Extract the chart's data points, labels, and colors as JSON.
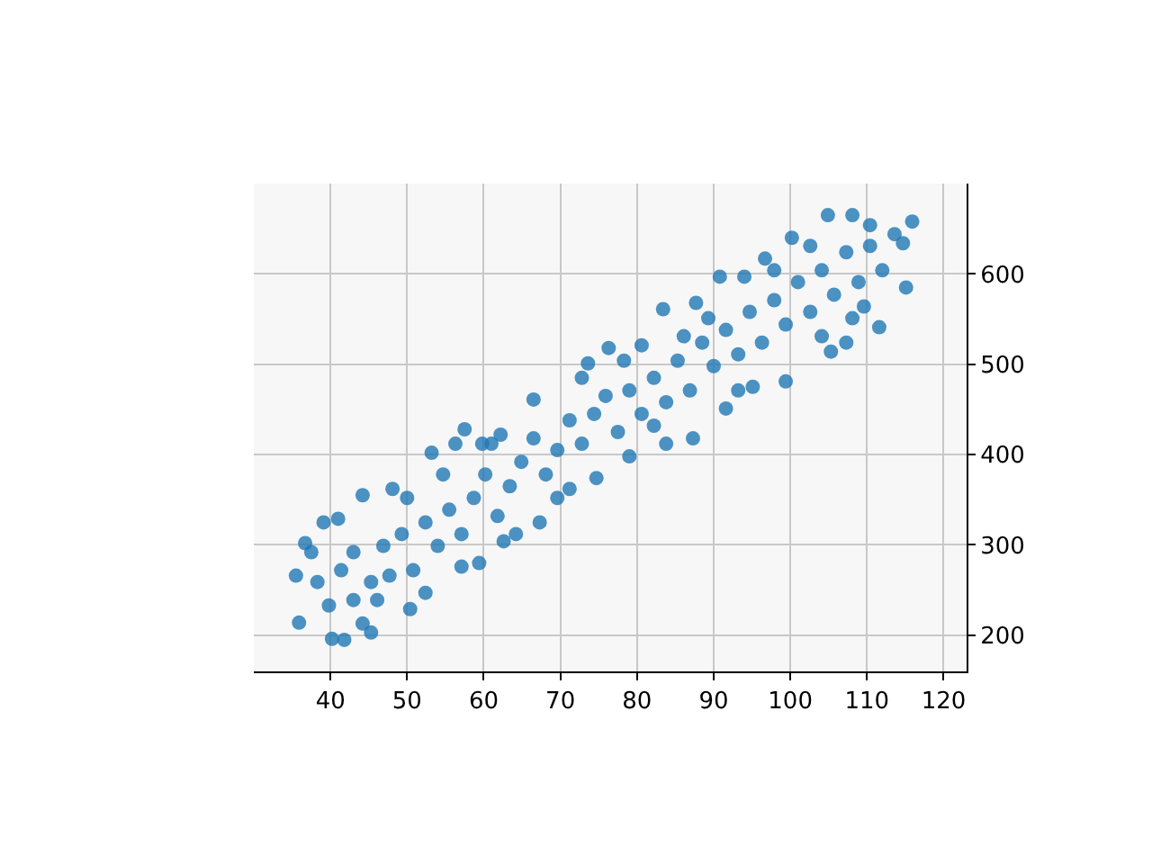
{
  "chart_data": {
    "type": "scatter",
    "x": [
      35.9,
      35.5,
      36.7,
      40.2,
      41.8,
      45.3,
      50.4,
      39.1,
      41.0,
      44.2,
      48.1,
      53.2,
      57.5,
      59.8,
      56.3,
      62.2,
      66.5,
      73.6,
      76.3,
      80.6,
      83.4,
      87.7,
      90.8,
      94.0,
      96.7,
      100.2,
      104.9,
      108.1,
      110.4,
      115.9,
      114.7,
      115.1,
      111.6,
      107.3,
      105.3,
      99.4,
      95.1,
      91.6,
      87.3,
      83.8,
      79.0,
      74.7,
      71.2,
      67.3,
      62.6,
      59.4,
      57.1,
      52.4,
      46.1,
      44.2,
      38.3,
      41.4,
      43.0,
      45.3,
      46.9,
      49.3,
      50.8,
      52.4,
      54.0,
      55.5,
      57.1,
      58.7,
      60.2,
      61.8,
      63.4,
      64.9,
      66.5,
      68.1,
      69.6,
      71.2,
      72.8,
      74.4,
      75.9,
      77.5,
      79.0,
      80.6,
      82.2,
      83.8,
      85.3,
      86.9,
      88.5,
      90.0,
      91.6,
      93.2,
      94.7,
      96.3,
      97.9,
      99.4,
      101.0,
      102.6,
      104.1,
      105.7,
      107.3,
      108.9,
      110.4,
      112.0,
      113.6,
      102.6,
      97.9,
      109.6,
      37.5,
      39.8,
      43.0,
      47.7,
      50.0,
      54.7,
      61.0,
      64.2,
      69.6,
      72.8,
      78.3,
      82.2,
      86.1,
      89.3,
      93.2,
      104.1,
      108.1
    ],
    "values": [
      214,
      266,
      302,
      196,
      195,
      203,
      229,
      325,
      329,
      355,
      362,
      402,
      428,
      412,
      412,
      422,
      461,
      501,
      518,
      521,
      561,
      568,
      597,
      597,
      617,
      640,
      665,
      665,
      654,
      658,
      634,
      585,
      541,
      524,
      514,
      481,
      475,
      451,
      418,
      412,
      398,
      374,
      362,
      325,
      304,
      280,
      276,
      247,
      239,
      213,
      259,
      272,
      292,
      259,
      299,
      312,
      272,
      325,
      299,
      339,
      312,
      352,
      378,
      332,
      365,
      392,
      418,
      378,
      405,
      438,
      412,
      445,
      465,
      425,
      471,
      445,
      485,
      458,
      504,
      471,
      524,
      498,
      538,
      511,
      558,
      524,
      571,
      544,
      591,
      558,
      604,
      577,
      624,
      591,
      631,
      604,
      644,
      631,
      604,
      564,
      292,
      233,
      239,
      266,
      352,
      378,
      412,
      312,
      352,
      485,
      504,
      432,
      531,
      551,
      471,
      531,
      551
    ],
    "color": "#1f77b4",
    "marker": "circle",
    "xlim": [
      30,
      123
    ],
    "ylim": [
      160,
      700
    ],
    "xticks": [
      40,
      50,
      60,
      70,
      80,
      90,
      100,
      110,
      120
    ],
    "yticks": [
      200,
      300,
      400,
      500,
      600
    ],
    "grid": true
  }
}
